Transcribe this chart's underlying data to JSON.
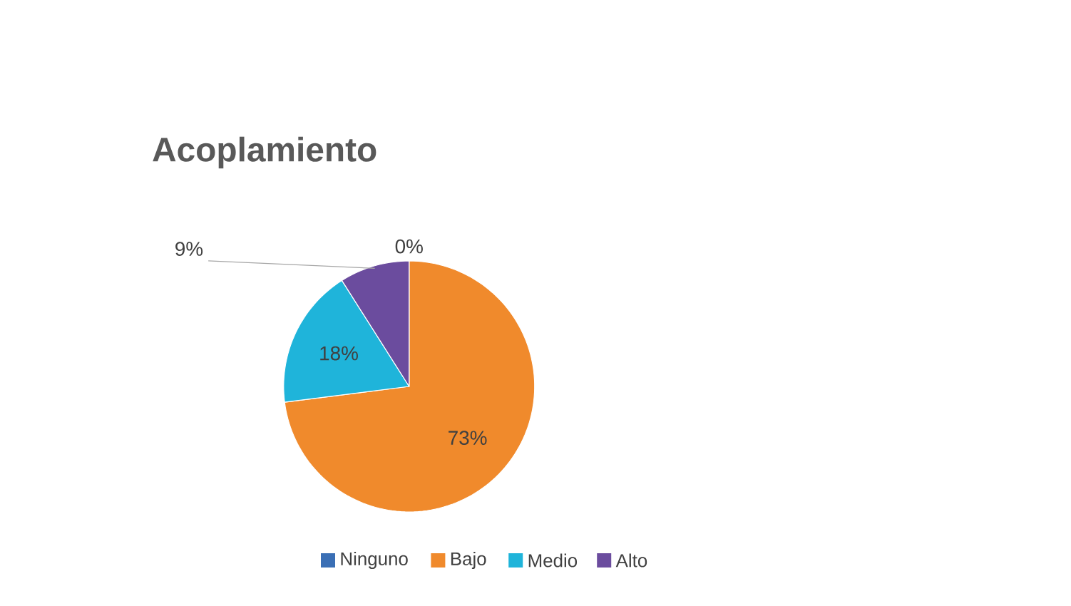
{
  "chart_data": {
    "type": "pie",
    "title": "Acoplamiento",
    "categories": [
      "Ninguno",
      "Bajo",
      "Medio",
      "Alto"
    ],
    "values": [
      0,
      73,
      18,
      9
    ],
    "colors": [
      "#3a6fb5",
      "#f08a2c",
      "#1fb4da",
      "#6b4c9e"
    ],
    "value_labels": [
      "0%",
      "73%",
      "18%",
      "9%"
    ],
    "legend": "bottom"
  }
}
